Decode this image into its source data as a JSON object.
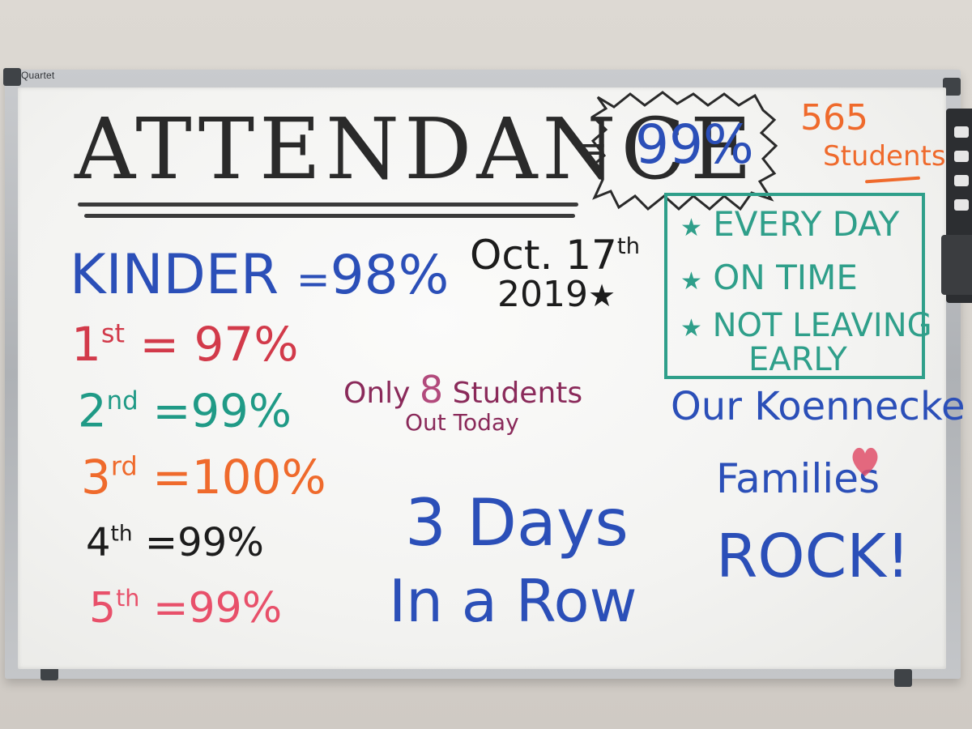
{
  "board": {
    "brand": "Quartet",
    "title": "ATTENDANCE",
    "equals": "=",
    "overall_percent": "99%",
    "students_count": "565",
    "students_label": "Students",
    "date_line1": "Oct. 17",
    "date_sup": "th",
    "date_line2": "2019",
    "star_glyph": "★",
    "goals": [
      "EVERY DAY",
      "ON TIME",
      "NOT LEAVING",
      "EARLY"
    ],
    "grades": [
      {
        "label": "KINDER",
        "sup": "",
        "eq": "=",
        "value": "98%",
        "color": "#2b4fb8"
      },
      {
        "label": "1",
        "sup": "st",
        "eq": "=",
        "value": "97%",
        "color": "#d23a4a"
      },
      {
        "label": "2",
        "sup": "nd",
        "eq": "=",
        "value": "99%",
        "color": "#1f9a86"
      },
      {
        "label": "3",
        "sup": "rd",
        "eq": "=",
        "value": "100%",
        "color": "#ef6a2c"
      },
      {
        "label": "4",
        "sup": "th",
        "eq": "=",
        "value": "99%",
        "color": "#1c1c1c"
      },
      {
        "label": "5",
        "sup": "th",
        "eq": "=",
        "value": "99%",
        "color": "#e8506a"
      }
    ],
    "only_prefix": "Only",
    "only_number": "8",
    "only_suffix": "Students",
    "out_today": "Out Today",
    "days_line1": "3 Days",
    "days_line2": "In a Row",
    "families_line1": "Our Koennecke",
    "families_line2": "Families",
    "families_line3": "ROCK!",
    "colors": {
      "title": "#2a2a2a",
      "blue": "#2b4fb8",
      "orange": "#ef6a2c",
      "teal": "#2f9f8a",
      "maroon": "#8a2a5a",
      "heart": "#e0506a"
    }
  }
}
